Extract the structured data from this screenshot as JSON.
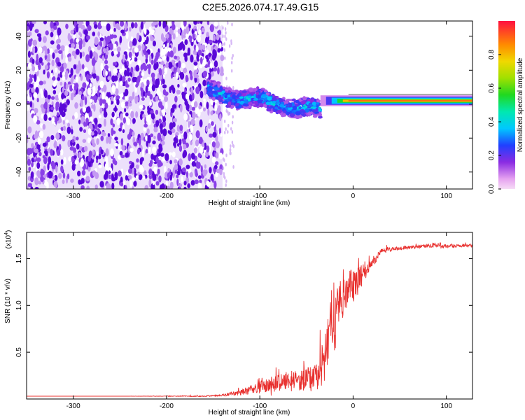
{
  "title": "C2E5.2026.074.17.49.G15",
  "colors": {
    "snr_line": "#e8302e",
    "spectrogram_noise": "#6a14d8",
    "spectrogram_peak": "#ff2020"
  },
  "chart_data": [
    {
      "type": "heatmap",
      "name": "spectrogram",
      "xlabel": "Height of straight line (km)",
      "ylabel": "Frequency (Hz)",
      "xlim": [
        -350,
        128
      ],
      "ylim": [
        -50,
        49
      ],
      "x_ticks": [
        -300,
        -200,
        -100,
        0,
        100
      ],
      "x_tick_labels": [
        "-300",
        "-200",
        "-100",
        "0",
        "100"
      ],
      "y_ticks": [
        -40,
        -20,
        0,
        20,
        40
      ],
      "y_tick_labels": [
        "-40",
        "-20",
        "0",
        "20",
        "40"
      ],
      "colorbar": {
        "label": "Normalized spectral amplitude",
        "range": [
          0,
          1
        ],
        "ticks": [
          0.0,
          0.2,
          0.4,
          0.6,
          0.8
        ],
        "tick_labels": [
          "0.0",
          "0.2",
          "0.4",
          "0.6",
          "0.8"
        ]
      },
      "regions": [
        {
          "name": "noise",
          "x_range": [
            -350,
            -140
          ],
          "freq_range": [
            -50,
            49
          ],
          "amplitude": 0.1
        },
        {
          "name": "transition",
          "x_range": [
            -155,
            -35
          ],
          "freq_center_start": 7,
          "freq_center_end": -4,
          "freq_halfwidth": 6,
          "amplitude": 0.35
        },
        {
          "name": "tone",
          "x_range": [
            -35,
            128
          ],
          "freq_center": 2,
          "freq_halfwidth": 1.5,
          "amplitude": 0.9
        }
      ]
    },
    {
      "type": "line",
      "name": "snr",
      "xlabel": "Height of straight line (km)",
      "ylabel": "SNR (10 * v/v)",
      "y_scale_label": "(x10",
      "y_scale_exponent": "4",
      "xlim": [
        -350,
        128
      ],
      "ylim": [
        0,
        1.78
      ],
      "x_ticks": [
        -300,
        -200,
        -100,
        0,
        100
      ],
      "x_tick_labels": [
        "-300",
        "-200",
        "-100",
        "0",
        "100"
      ],
      "y_ticks": [
        0.5,
        1.0,
        1.5
      ],
      "y_tick_labels": [
        "0.5",
        "1.0",
        "1.5"
      ],
      "series": [
        {
          "name": "SNR",
          "x": [
            -350,
            -250,
            -160,
            -140,
            -120,
            -100,
            -80,
            -60,
            -45,
            -35,
            -28,
            -25,
            -20,
            -15,
            -10,
            -5,
            0,
            10,
            20,
            30,
            50,
            70,
            90,
            100,
            110,
            128
          ],
          "y": [
            0.03,
            0.03,
            0.03,
            0.04,
            0.07,
            0.13,
            0.18,
            0.2,
            0.22,
            0.3,
            0.55,
            0.9,
            0.75,
            1.0,
            1.1,
            1.2,
            1.2,
            1.35,
            1.45,
            1.58,
            1.61,
            1.63,
            1.65,
            1.63,
            1.64,
            1.64
          ],
          "noise": [
            0.0,
            0.0,
            0.005,
            0.01,
            0.03,
            0.06,
            0.1,
            0.12,
            0.14,
            0.2,
            0.3,
            0.35,
            0.3,
            0.25,
            0.2,
            0.18,
            0.2,
            0.12,
            0.06,
            0.03,
            0.02,
            0.02,
            0.03,
            0.02,
            0.02,
            0.02
          ]
        }
      ]
    }
  ]
}
